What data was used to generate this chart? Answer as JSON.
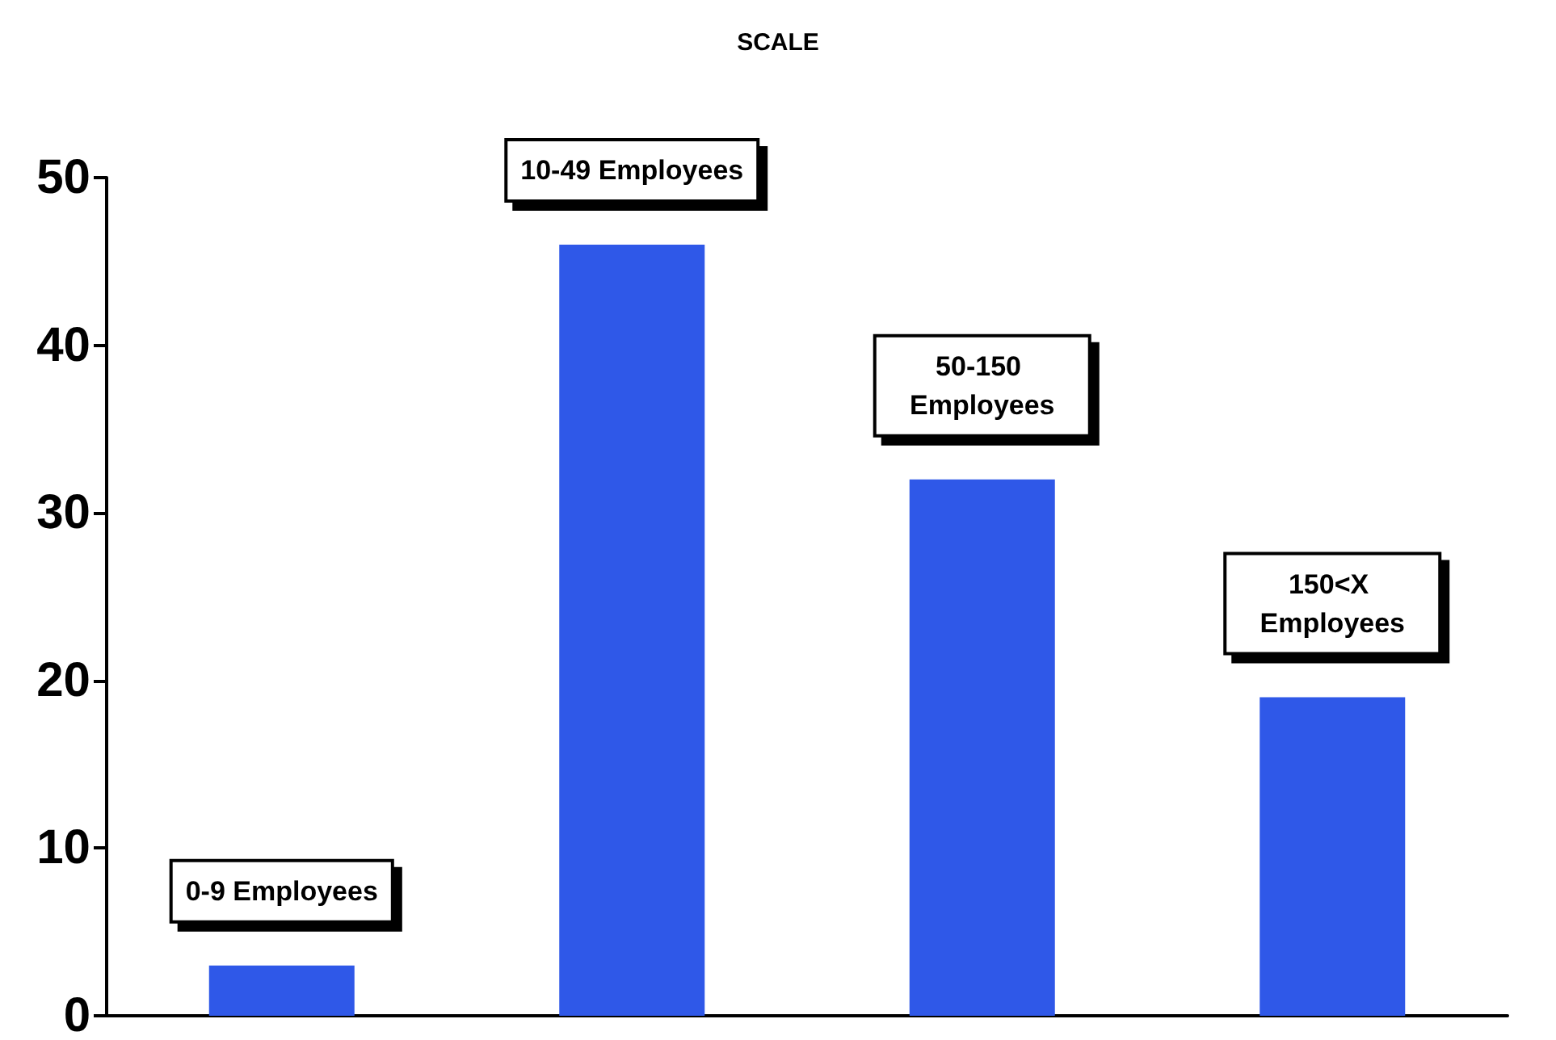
{
  "chart_data": {
    "type": "bar",
    "title": "SCALE",
    "categories": [
      "0-9 Employees",
      "10-49 Employees",
      "50-150 Employees",
      "150<X Employees"
    ],
    "values": [
      3,
      46,
      32,
      19
    ],
    "color": "#2f58e8",
    "ylim": [
      0,
      50
    ],
    "yticks": [
      0,
      10,
      20,
      30,
      40,
      50
    ],
    "grid": false
  }
}
